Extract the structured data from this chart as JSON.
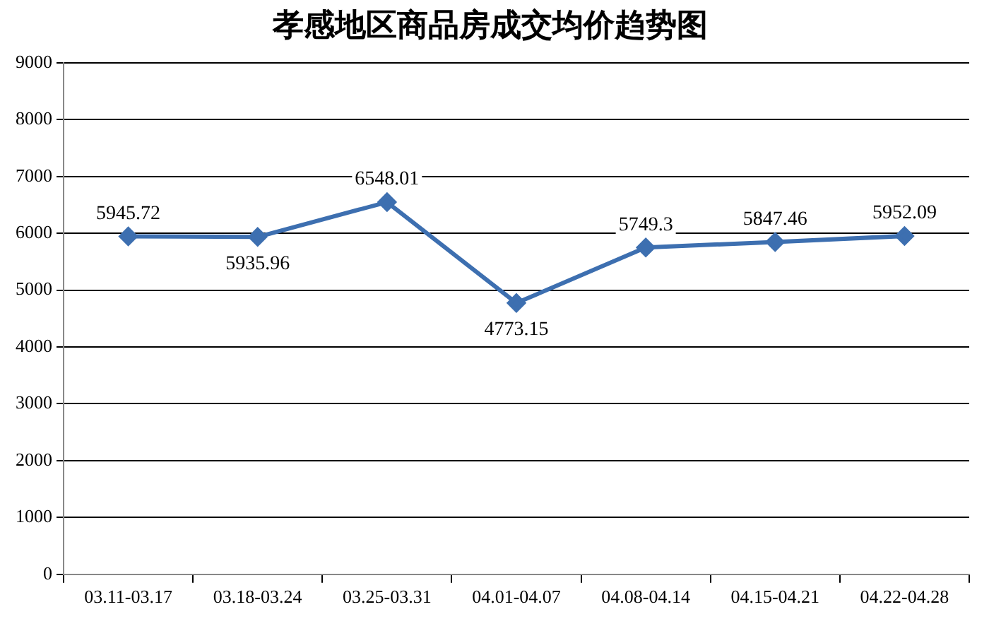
{
  "chart_data": {
    "type": "line",
    "title": "孝感地区商品房成交均价趋势图",
    "categories": [
      "03.11-03.17",
      "03.18-03.24",
      "03.25-03.31",
      "04.01-04.07",
      "04.08-04.14",
      "04.15-04.21",
      "04.22-04.28"
    ],
    "series": [
      {
        "color": "#3d6fb0",
        "values": [
          5945.72,
          5935.96,
          6548.01,
          4773.15,
          5749.3,
          5847.46,
          5952.09
        ]
      }
    ],
    "ylim": [
      0,
      9000
    ],
    "yticks": [
      0,
      1000,
      2000,
      3000,
      4000,
      5000,
      6000,
      7000,
      8000,
      9000
    ],
    "grid": "y",
    "legend": false,
    "marker": "diamond",
    "line_style": "solid",
    "data_labels": true
  }
}
